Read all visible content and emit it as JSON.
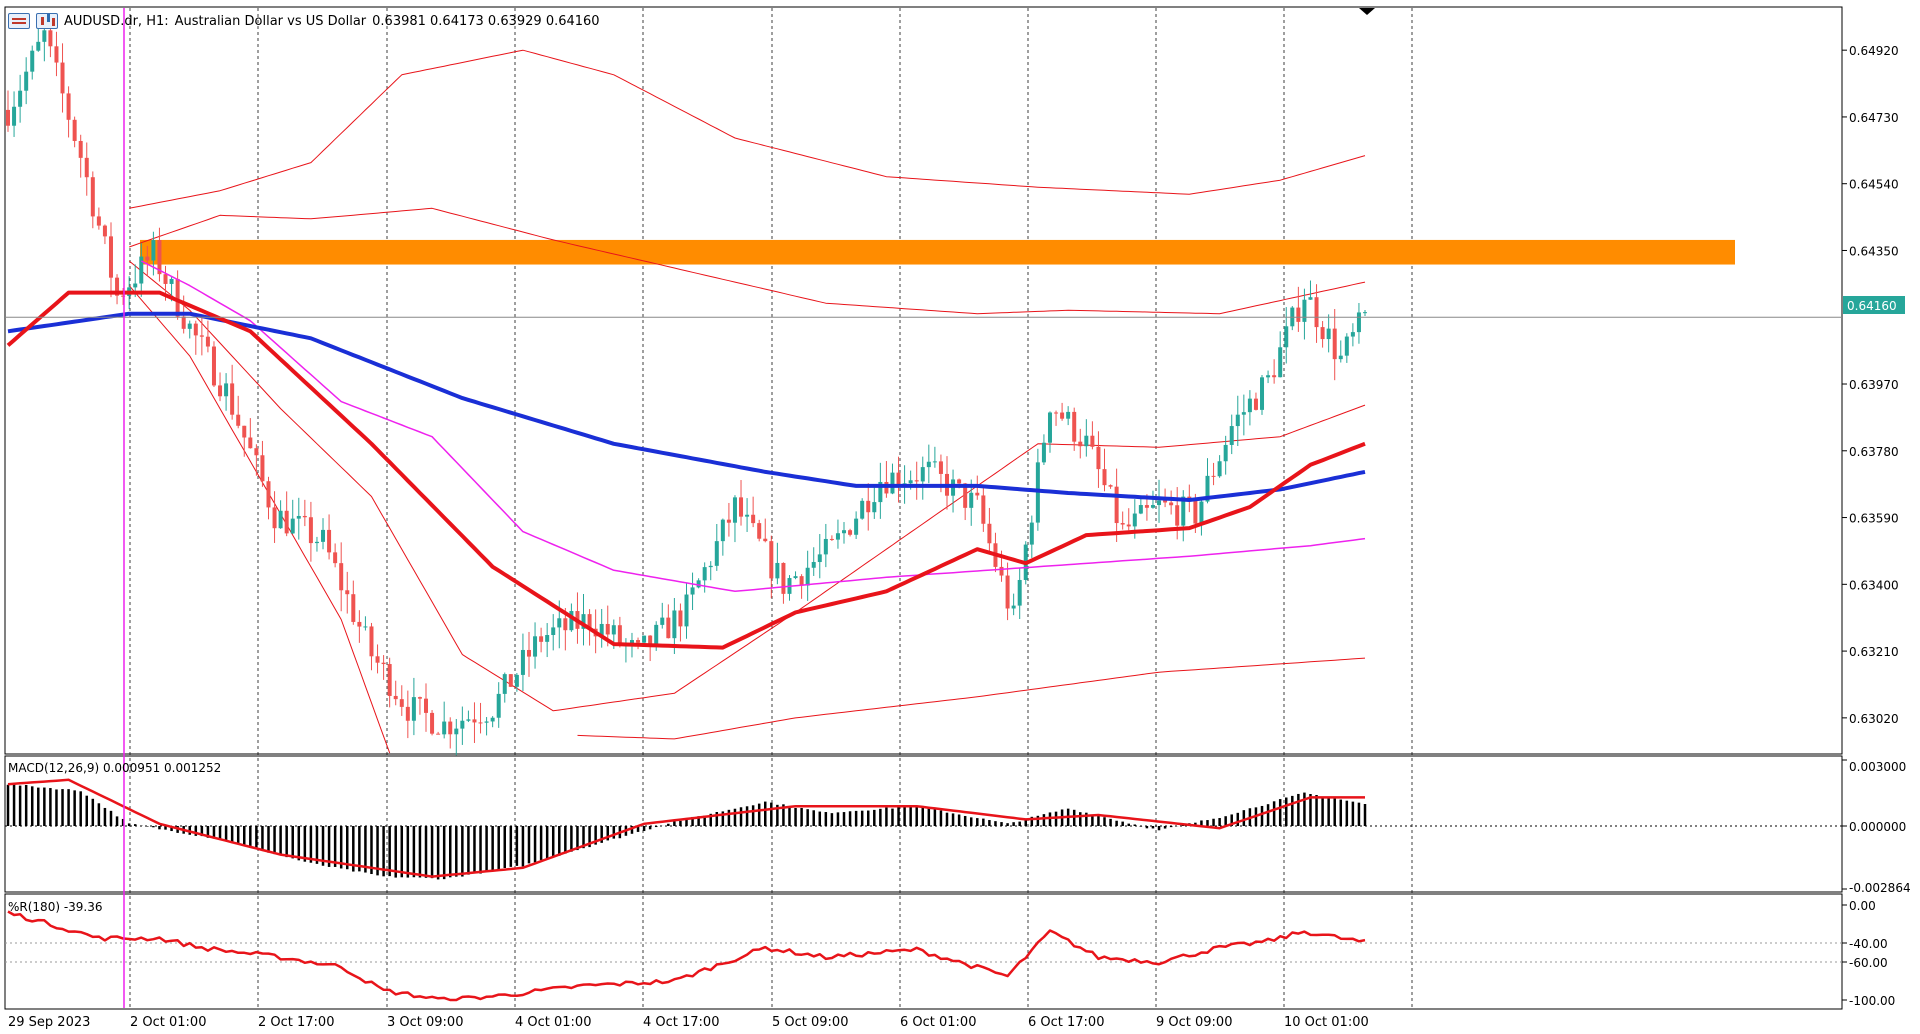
{
  "header": {
    "symbol": "AUDUSD.dr, H1:",
    "description": "Australian Dollar vs US Dollar",
    "ohlc": "0.63981 0.64173 0.63929 0.64160"
  },
  "price_axis": {
    "ticks": [
      "0.64920",
      "0.64730",
      "0.64540",
      "0.64350",
      "0.63970",
      "0.63780",
      "0.63590",
      "0.63400",
      "0.63210",
      "0.63020"
    ],
    "tick_values": [
      0.6492,
      0.6473,
      0.6454,
      0.6435,
      0.6397,
      0.6378,
      0.6359,
      0.634,
      0.6321,
      0.6302
    ],
    "current_price_label": "0.64160",
    "current_price": 0.6416
  },
  "time_axis": {
    "labels": [
      "29 Sep 2023",
      "2 Oct 01:00",
      "2 Oct 17:00",
      "3 Oct 09:00",
      "4 Oct 01:00",
      "4 Oct 17:00",
      "5 Oct 09:00",
      "6 Oct 01:00",
      "6 Oct 17:00",
      "9 Oct 09:00",
      "10 Oct 01:00"
    ]
  },
  "macd": {
    "label": "MACD(12,26,9) 0.000951 0.001252",
    "axis_labels": [
      "0.003000",
      "0.000000",
      "-0.002864"
    ],
    "axis_values": [
      0.003,
      0.0,
      -0.002864
    ]
  },
  "williams": {
    "label": "%R(180) -39.36",
    "axis_labels": [
      "0.00",
      "-40.00",
      "-60.00",
      "-100.00"
    ],
    "axis_values": [
      0,
      -40,
      -60,
      -100
    ]
  },
  "colors": {
    "bull": "#26a69a",
    "bear": "#ef5350",
    "ma_fast": "#e8141a",
    "ma_slow": "#1a2fd6",
    "ma_mid": "#ee22ee",
    "bands": "#e8141a",
    "zone": "#ff8c00",
    "price_tag": "#26a69a"
  },
  "chart_data": [
    {
      "type": "candlestick",
      "symbol": "AUDUSD.dr",
      "timeframe": "H1",
      "ylim": [
        0.6292,
        0.6504
      ],
      "current_price": 0.6416,
      "resistance_zone": [
        0.6431,
        0.6438
      ],
      "anchors": [
        {
          "bar": 0,
          "close": 0.6475
        },
        {
          "bar": 6,
          "close": 0.6496
        },
        {
          "bar": 12,
          "close": 0.6462
        },
        {
          "bar": 18,
          "close": 0.6422
        },
        {
          "bar": 24,
          "close": 0.6434
        },
        {
          "bar": 30,
          "close": 0.6413
        },
        {
          "bar": 36,
          "close": 0.6395
        },
        {
          "bar": 44,
          "close": 0.636
        },
        {
          "bar": 52,
          "close": 0.6352
        },
        {
          "bar": 60,
          "close": 0.632
        },
        {
          "bar": 66,
          "close": 0.6305
        },
        {
          "bar": 72,
          "close": 0.63
        },
        {
          "bar": 80,
          "close": 0.6305
        },
        {
          "bar": 88,
          "close": 0.6325
        },
        {
          "bar": 96,
          "close": 0.633
        },
        {
          "bar": 104,
          "close": 0.632
        },
        {
          "bar": 112,
          "close": 0.6333
        },
        {
          "bar": 120,
          "close": 0.6362
        },
        {
          "bar": 128,
          "close": 0.634
        },
        {
          "bar": 136,
          "close": 0.635
        },
        {
          "bar": 144,
          "close": 0.637
        },
        {
          "bar": 152,
          "close": 0.6372
        },
        {
          "bar": 160,
          "close": 0.6362
        },
        {
          "bar": 166,
          "close": 0.633
        },
        {
          "bar": 172,
          "close": 0.6392
        },
        {
          "bar": 178,
          "close": 0.638
        },
        {
          "bar": 184,
          "close": 0.6355
        },
        {
          "bar": 190,
          "close": 0.6362
        },
        {
          "bar": 196,
          "close": 0.636
        },
        {
          "bar": 202,
          "close": 0.6385
        },
        {
          "bar": 208,
          "close": 0.6398
        },
        {
          "bar": 214,
          "close": 0.6423
        },
        {
          "bar": 220,
          "close": 0.6404
        },
        {
          "bar": 224,
          "close": 0.6416
        }
      ],
      "ma_fast": [
        {
          "bar": 0,
          "v": 0.6408
        },
        {
          "bar": 10,
          "v": 0.6423
        },
        {
          "bar": 25,
          "v": 0.6423
        },
        {
          "bar": 40,
          "v": 0.6412
        },
        {
          "bar": 60,
          "v": 0.638
        },
        {
          "bar": 80,
          "v": 0.6345
        },
        {
          "bar": 100,
          "v": 0.6323
        },
        {
          "bar": 118,
          "v": 0.6322
        },
        {
          "bar": 130,
          "v": 0.6332
        },
        {
          "bar": 145,
          "v": 0.6338
        },
        {
          "bar": 160,
          "v": 0.635
        },
        {
          "bar": 168,
          "v": 0.6346
        },
        {
          "bar": 178,
          "v": 0.6354
        },
        {
          "bar": 195,
          "v": 0.6356
        },
        {
          "bar": 205,
          "v": 0.6362
        },
        {
          "bar": 215,
          "v": 0.6374
        },
        {
          "bar": 224,
          "v": 0.638
        }
      ],
      "ma_slow": [
        {
          "bar": 0,
          "v": 0.6412
        },
        {
          "bar": 20,
          "v": 0.6417
        },
        {
          "bar": 30,
          "v": 0.6417
        },
        {
          "bar": 50,
          "v": 0.641
        },
        {
          "bar": 75,
          "v": 0.6393
        },
        {
          "bar": 100,
          "v": 0.638
        },
        {
          "bar": 125,
          "v": 0.6372
        },
        {
          "bar": 140,
          "v": 0.6368
        },
        {
          "bar": 160,
          "v": 0.6368
        },
        {
          "bar": 175,
          "v": 0.6366
        },
        {
          "bar": 195,
          "v": 0.6364
        },
        {
          "bar": 210,
          "v": 0.6367
        },
        {
          "bar": 224,
          "v": 0.6372
        }
      ],
      "ma_mid": [
        {
          "bar": 22,
          "v": 0.6432
        },
        {
          "bar": 30,
          "v": 0.6425
        },
        {
          "bar": 40,
          "v": 0.6415
        },
        {
          "bar": 55,
          "v": 0.6392
        },
        {
          "bar": 70,
          "v": 0.6382
        },
        {
          "bar": 85,
          "v": 0.6355
        },
        {
          "bar": 100,
          "v": 0.6344
        },
        {
          "bar": 120,
          "v": 0.6338
        },
        {
          "bar": 145,
          "v": 0.6342
        },
        {
          "bar": 170,
          "v": 0.6345
        },
        {
          "bar": 195,
          "v": 0.6348
        },
        {
          "bar": 215,
          "v": 0.6351
        },
        {
          "bar": 224,
          "v": 0.6353
        }
      ],
      "band_outer_upper": [
        {
          "bar": 20,
          "v": 0.6447
        },
        {
          "bar": 35,
          "v": 0.6452
        },
        {
          "bar": 50,
          "v": 0.646
        },
        {
          "bar": 65,
          "v": 0.6485
        },
        {
          "bar": 85,
          "v": 0.6492
        },
        {
          "bar": 100,
          "v": 0.6485
        },
        {
          "bar": 120,
          "v": 0.6467
        },
        {
          "bar": 145,
          "v": 0.6456
        },
        {
          "bar": 170,
          "v": 0.6453
        },
        {
          "bar": 195,
          "v": 0.6451
        },
        {
          "bar": 210,
          "v": 0.6455
        },
        {
          "bar": 224,
          "v": 0.6462
        }
      ],
      "band_inner_upper": [
        {
          "bar": 20,
          "v": 0.6436
        },
        {
          "bar": 35,
          "v": 0.6445
        },
        {
          "bar": 50,
          "v": 0.6444
        },
        {
          "bar": 70,
          "v": 0.6447
        },
        {
          "bar": 90,
          "v": 0.6438
        },
        {
          "bar": 110,
          "v": 0.643
        },
        {
          "bar": 135,
          "v": 0.642
        },
        {
          "bar": 160,
          "v": 0.6417
        },
        {
          "bar": 175,
          "v": 0.6418
        },
        {
          "bar": 200,
          "v": 0.6417
        },
        {
          "bar": 224,
          "v": 0.6426
        }
      ],
      "band_inner_lower": [
        {
          "bar": 20,
          "v": 0.6432
        },
        {
          "bar": 30,
          "v": 0.6418
        },
        {
          "bar": 45,
          "v": 0.639
        },
        {
          "bar": 60,
          "v": 0.6365
        },
        {
          "bar": 75,
          "v": 0.632
        },
        {
          "bar": 90,
          "v": 0.6304
        },
        {
          "bar": 110,
          "v": 0.6309
        },
        {
          "bar": 130,
          "v": 0.6332
        },
        {
          "bar": 150,
          "v": 0.6356
        },
        {
          "bar": 170,
          "v": 0.638
        },
        {
          "bar": 190,
          "v": 0.6379
        },
        {
          "bar": 210,
          "v": 0.6382
        },
        {
          "bar": 224,
          "v": 0.6391
        }
      ],
      "band_outer_lower": [
        {
          "bar": 20,
          "v": 0.6425
        },
        {
          "bar": 30,
          "v": 0.6405
        },
        {
          "bar": 45,
          "v": 0.636
        },
        {
          "bar": 55,
          "v": 0.633
        },
        {
          "bar": 63,
          "v": 0.6292
        }
      ],
      "band_low": [
        {
          "bar": 94,
          "v": 0.6297
        },
        {
          "bar": 110,
          "v": 0.6296
        },
        {
          "bar": 130,
          "v": 0.6302
        },
        {
          "bar": 160,
          "v": 0.6308
        },
        {
          "bar": 190,
          "v": 0.6315
        },
        {
          "bar": 224,
          "v": 0.6319
        }
      ]
    },
    {
      "type": "bar",
      "name": "MACD(12,26,9)",
      "ylim": [
        -0.002864,
        0.003
      ],
      "histogram_anchors": [
        {
          "bar": 0,
          "v": 0.0019
        },
        {
          "bar": 12,
          "v": 0.0016
        },
        {
          "bar": 20,
          "v": 0.0001
        },
        {
          "bar": 35,
          "v": -0.0006
        },
        {
          "bar": 50,
          "v": -0.0017
        },
        {
          "bar": 62,
          "v": -0.0023
        },
        {
          "bar": 72,
          "v": -0.0024
        },
        {
          "bar": 85,
          "v": -0.0018
        },
        {
          "bar": 100,
          "v": -0.0006
        },
        {
          "bar": 110,
          "v": 0.0002
        },
        {
          "bar": 125,
          "v": 0.0011
        },
        {
          "bar": 135,
          "v": 0.0006
        },
        {
          "bar": 150,
          "v": 0.0009
        },
        {
          "bar": 165,
          "v": 0.0001
        },
        {
          "bar": 175,
          "v": 0.0008
        },
        {
          "bar": 190,
          "v": -0.0002
        },
        {
          "bar": 200,
          "v": 0.0004
        },
        {
          "bar": 214,
          "v": 0.0015
        },
        {
          "bar": 224,
          "v": 0.001
        }
      ],
      "signal": [
        {
          "bar": 0,
          "v": 0.0019
        },
        {
          "bar": 10,
          "v": 0.0021
        },
        {
          "bar": 25,
          "v": 0.0001
        },
        {
          "bar": 45,
          "v": -0.0013
        },
        {
          "bar": 70,
          "v": -0.0023
        },
        {
          "bar": 85,
          "v": -0.0019
        },
        {
          "bar": 105,
          "v": 0.0001
        },
        {
          "bar": 130,
          "v": 0.0009
        },
        {
          "bar": 150,
          "v": 0.0009
        },
        {
          "bar": 168,
          "v": 0.0003
        },
        {
          "bar": 180,
          "v": 0.0005
        },
        {
          "bar": 200,
          "v": -0.0001
        },
        {
          "bar": 215,
          "v": 0.0013
        },
        {
          "bar": 224,
          "v": 0.0013
        }
      ]
    },
    {
      "type": "line",
      "name": "%R(180)",
      "ylim": [
        -100,
        0
      ],
      "points": [
        {
          "bar": 0,
          "v": -8
        },
        {
          "bar": 8,
          "v": -22
        },
        {
          "bar": 15,
          "v": -35
        },
        {
          "bar": 25,
          "v": -35
        },
        {
          "bar": 32,
          "v": -45
        },
        {
          "bar": 45,
          "v": -55
        },
        {
          "bar": 55,
          "v": -65
        },
        {
          "bar": 62,
          "v": -90
        },
        {
          "bar": 72,
          "v": -100
        },
        {
          "bar": 82,
          "v": -95
        },
        {
          "bar": 95,
          "v": -85
        },
        {
          "bar": 110,
          "v": -80
        },
        {
          "bar": 125,
          "v": -45
        },
        {
          "bar": 135,
          "v": -55
        },
        {
          "bar": 150,
          "v": -47
        },
        {
          "bar": 165,
          "v": -75
        },
        {
          "bar": 172,
          "v": -28
        },
        {
          "bar": 180,
          "v": -55
        },
        {
          "bar": 190,
          "v": -60
        },
        {
          "bar": 200,
          "v": -45
        },
        {
          "bar": 208,
          "v": -38
        },
        {
          "bar": 214,
          "v": -28
        },
        {
          "bar": 224,
          "v": -39.36
        }
      ]
    }
  ]
}
